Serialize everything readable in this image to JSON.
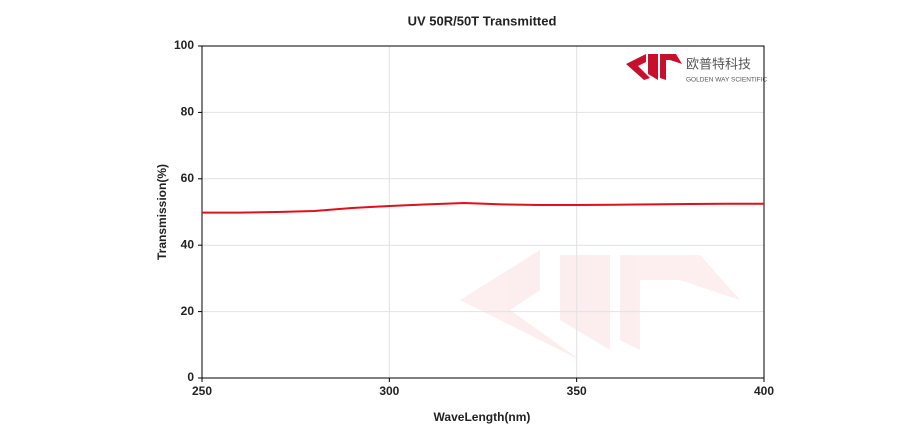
{
  "chart_data": {
    "type": "line",
    "title": "UV 50R/50T Transmitted",
    "x_label": "WaveLength(nm)",
    "y_label": "Transmission(%)",
    "x": [
      250,
      260,
      270,
      280,
      290,
      300,
      310,
      320,
      330,
      340,
      350,
      360,
      370,
      380,
      390,
      400
    ],
    "values": [
      49.8,
      49.8,
      50.0,
      50.3,
      51.2,
      51.8,
      52.3,
      52.7,
      52.3,
      52.1,
      52.1,
      52.2,
      52.3,
      52.4,
      52.5,
      52.5
    ],
    "color": "#e0101a",
    "xlim": [
      250,
      400
    ],
    "xticks": [
      250,
      300,
      350,
      400
    ],
    "ylim": [
      0,
      100
    ],
    "yticks": [
      0,
      20,
      40,
      60,
      80,
      100
    ],
    "grid": true,
    "logo": {
      "name": "欧普特科技",
      "tagline": "GOLDEN WAY SCIENTIFIC"
    }
  }
}
